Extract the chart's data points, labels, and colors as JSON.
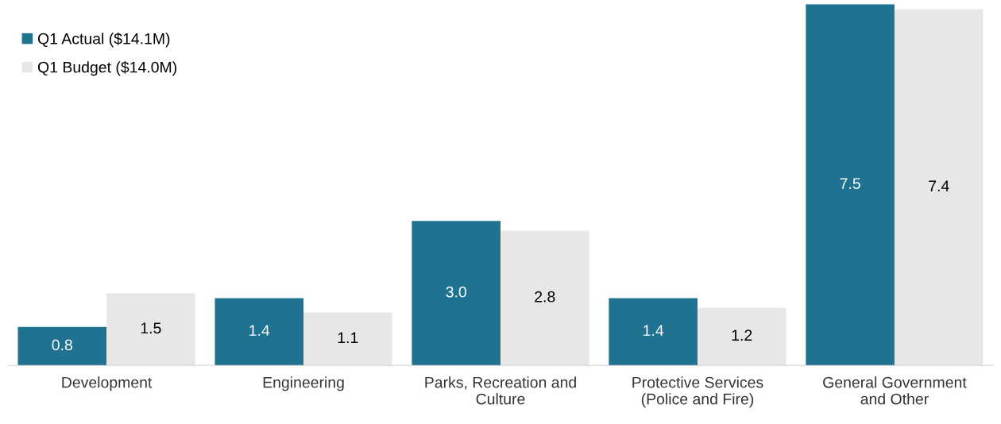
{
  "chart_data": {
    "type": "bar",
    "categories": [
      "Development",
      "Engineering",
      "Parks, Recreation and Culture",
      "Protective Services (Police and Fire)",
      "General Government and Other"
    ],
    "series": [
      {
        "name": "Q1 Actual ($14.1M)",
        "color": "#1f7391",
        "values": [
          0.8,
          1.4,
          3.0,
          1.4,
          7.5
        ],
        "value_labels": [
          "0.8",
          "1.4",
          "3.0",
          "1.4",
          "7.5"
        ]
      },
      {
        "name": "Q1 Budget ($14.0M)",
        "color": "#e7e7e7",
        "values": [
          1.5,
          1.1,
          2.8,
          1.2,
          7.4
        ],
        "value_labels": [
          "1.5",
          "1.1",
          "2.8",
          "1.2",
          "7.4"
        ]
      }
    ],
    "legend": "top left"
  }
}
